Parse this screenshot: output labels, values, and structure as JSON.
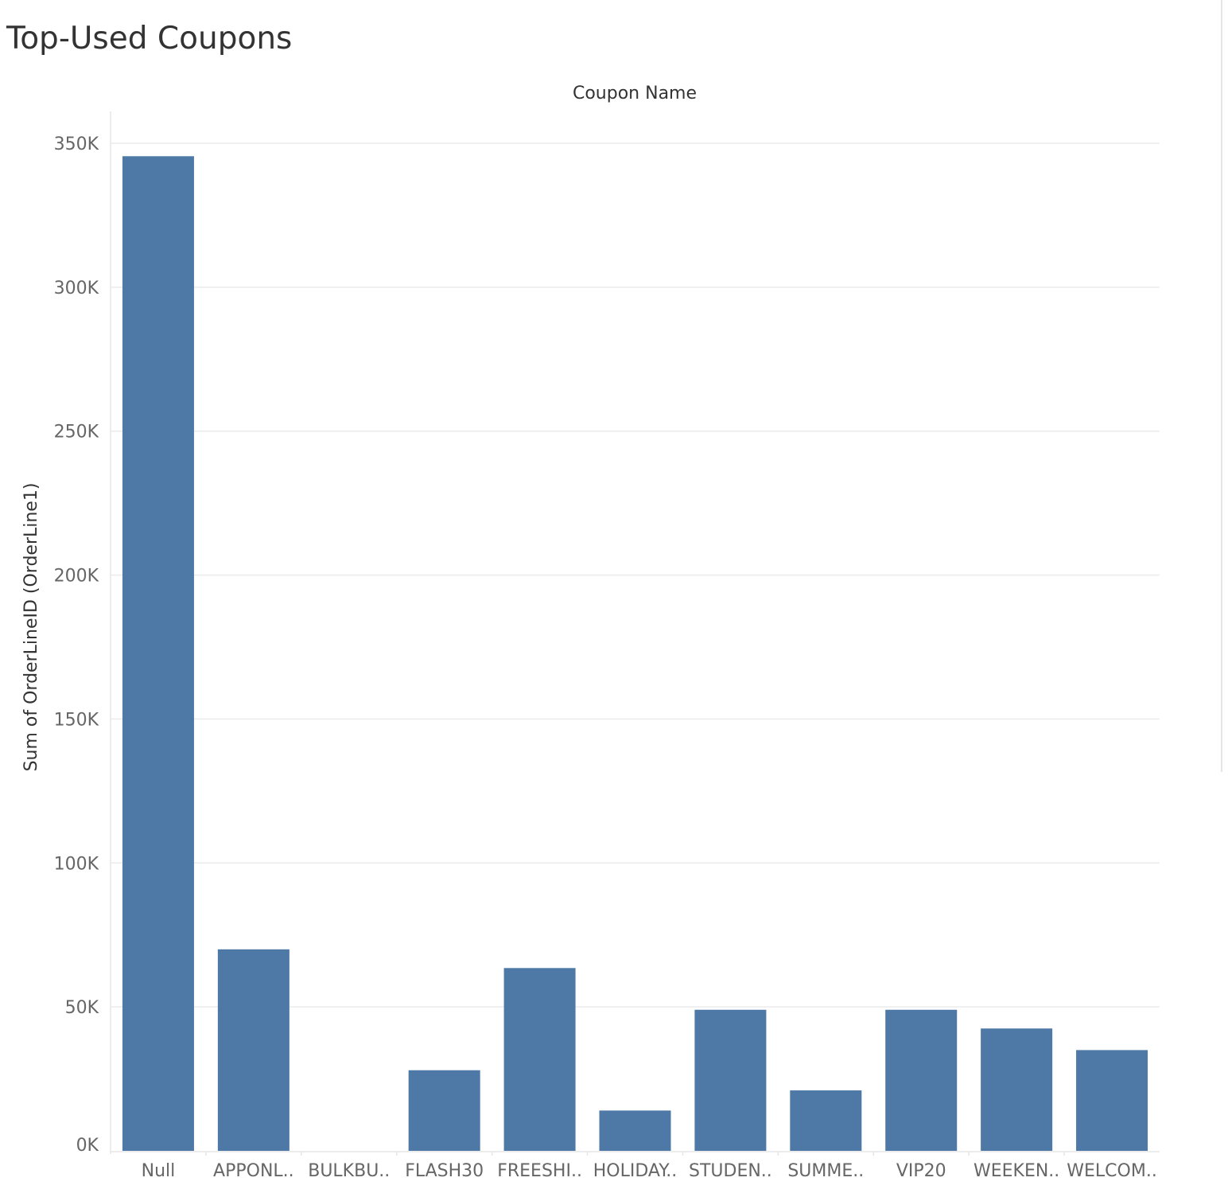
{
  "page": {
    "title": "Top-Used Coupons"
  },
  "chart_data": {
    "type": "bar",
    "xlabel": "Coupon Name",
    "ylabel": "Sum of OrderLineID (OrderLine1)",
    "categories": [
      "Null",
      "APPONL..",
      "BULKBU..",
      "FLASH30",
      "FREESHI..",
      "HOLIDAY..",
      "STUDEN..",
      "SUMME..",
      "VIP20",
      "WEEKEN..",
      "WELCOM.."
    ],
    "values": [
      345500,
      70000,
      0,
      28000,
      63500,
      14000,
      49000,
      21000,
      49000,
      42500,
      35000
    ],
    "ylim": [
      0,
      350000
    ],
    "yticks": [
      0,
      50000,
      100000,
      150000,
      200000,
      250000,
      300000,
      350000
    ],
    "ytick_labels": [
      "0K",
      "50K",
      "100K",
      "150K",
      "200K",
      "250K",
      "300K",
      "350K"
    ],
    "bar_color": "#4e79a7",
    "grid": true
  }
}
